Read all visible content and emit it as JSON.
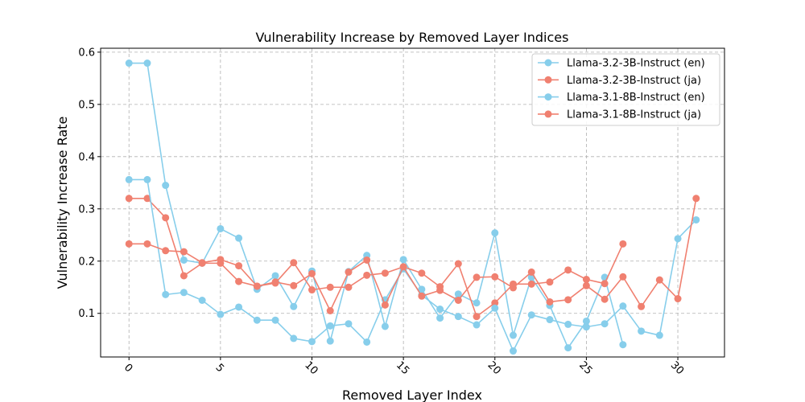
{
  "chart_data": {
    "type": "line",
    "title": "Vulnerability Increase by Removed Layer Indices",
    "xlabel": "Removed Layer Index",
    "ylabel": "Vulnerability Increase Rate",
    "xlim": [
      -1.55,
      32.55
    ],
    "ylim": [
      0.0165,
      0.6075
    ],
    "xticks": [
      0,
      5,
      10,
      15,
      20,
      25,
      30
    ],
    "yticks": [
      0.1,
      0.2,
      0.3,
      0.4,
      0.5,
      0.6
    ],
    "ytick_labels": [
      "0.1",
      "0.2",
      "0.3",
      "0.4",
      "0.5",
      "0.6"
    ],
    "grid": true,
    "legend_position": "top-right",
    "series": [
      {
        "name": "Llama-3.2-3B-Instruct (en)",
        "color": "#87CEEB",
        "x": [
          0,
          1,
          2,
          3,
          4,
          5,
          6,
          7,
          8,
          9,
          10,
          11,
          12,
          13,
          14,
          15,
          16,
          17,
          18,
          19,
          20,
          21,
          22,
          23,
          24,
          25,
          26,
          27
        ],
        "values": [
          0.579,
          0.579,
          0.345,
          0.202,
          0.196,
          0.262,
          0.244,
          0.146,
          0.172,
          0.113,
          0.181,
          0.047,
          0.18,
          0.211,
          0.075,
          0.203,
          0.146,
          0.091,
          0.137,
          0.12,
          0.254,
          0.058,
          0.169,
          0.115,
          0.034,
          0.085,
          0.169,
          0.04
        ]
      },
      {
        "name": "Llama-3.2-3B-Instruct (ja)",
        "color": "#F08070",
        "x": [
          0,
          1,
          2,
          3,
          4,
          5,
          6,
          7,
          8,
          9,
          10,
          11,
          12,
          13,
          14,
          15,
          16,
          17,
          18,
          19,
          20,
          21,
          22,
          23,
          24,
          25,
          26,
          27
        ],
        "values": [
          0.32,
          0.32,
          0.283,
          0.172,
          0.196,
          0.196,
          0.161,
          0.152,
          0.158,
          0.197,
          0.145,
          0.15,
          0.15,
          0.173,
          0.177,
          0.189,
          0.177,
          0.151,
          0.195,
          0.094,
          0.12,
          0.156,
          0.156,
          0.16,
          0.183,
          0.165,
          0.157,
          0.233
        ]
      },
      {
        "name": "Llama-3.1-8B-Instruct (en)",
        "color": "#87CEEB",
        "x": [
          0,
          1,
          2,
          3,
          4,
          5,
          6,
          7,
          8,
          9,
          10,
          11,
          12,
          13,
          14,
          15,
          16,
          17,
          18,
          19,
          20,
          21,
          22,
          23,
          24,
          25,
          26,
          27,
          28,
          29,
          30,
          31
        ],
        "values": [
          0.356,
          0.356,
          0.136,
          0.14,
          0.125,
          0.098,
          0.112,
          0.087,
          0.087,
          0.052,
          0.046,
          0.076,
          0.08,
          0.045,
          0.126,
          0.185,
          0.135,
          0.108,
          0.094,
          0.078,
          0.11,
          0.028,
          0.097,
          0.088,
          0.079,
          0.074,
          0.08,
          0.114,
          0.066,
          0.058,
          0.243,
          0.279
        ]
      },
      {
        "name": "Llama-3.1-8B-Instruct (ja)",
        "color": "#F08070",
        "x": [
          0,
          1,
          2,
          3,
          4,
          5,
          6,
          7,
          8,
          9,
          10,
          11,
          12,
          13,
          14,
          15,
          16,
          17,
          18,
          19,
          20,
          21,
          22,
          23,
          24,
          25,
          26,
          27,
          28,
          29,
          30,
          31
        ],
        "values": [
          0.233,
          0.233,
          0.22,
          0.218,
          0.197,
          0.203,
          0.191,
          0.152,
          0.16,
          0.153,
          0.176,
          0.105,
          0.179,
          0.202,
          0.116,
          0.189,
          0.133,
          0.144,
          0.125,
          0.169,
          0.17,
          0.149,
          0.179,
          0.122,
          0.126,
          0.153,
          0.127,
          0.17,
          0.113,
          0.164,
          0.128,
          0.32
        ]
      }
    ]
  }
}
